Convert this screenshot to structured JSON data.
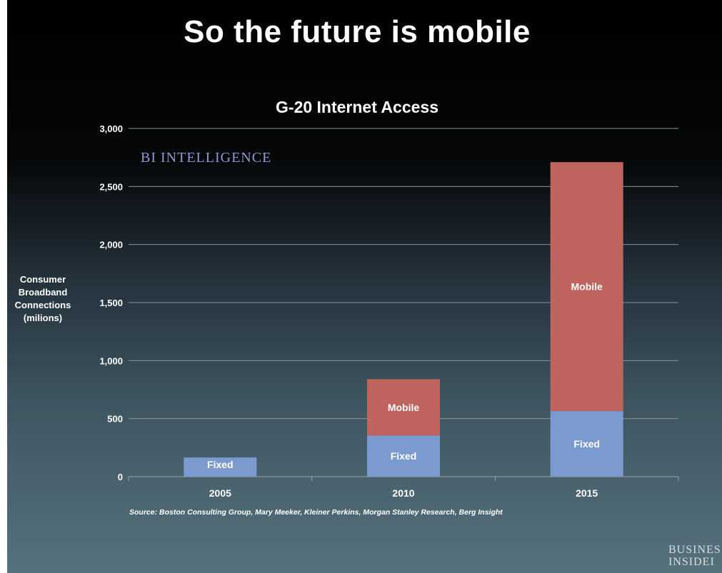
{
  "slide_title": "So the future is mobile",
  "watermark": "BI INTELLIGENCE",
  "source": "Source: Boston Consulting Group, Mary Meeker, Kleiner Perkins, Morgan Stanley Research, Berg Insight",
  "publisher_logo": "BUSINES\nINSIDEI",
  "colors": {
    "fixed": "#7b9ad0",
    "mobile": "#c0645f",
    "grid": "#8a949a",
    "text": "#ffffff"
  },
  "chart_data": {
    "type": "bar",
    "stacked": true,
    "title": "G-20 Internet Access",
    "xlabel": "",
    "ylabel": "Consumer\nBroadband\nConnections\n(milions)",
    "categories": [
      "2005",
      "2010",
      "2015"
    ],
    "series": [
      {
        "name": "Fixed",
        "values": [
          165,
          355,
          565
        ],
        "color": "#7b9ad0",
        "labels": [
          "Fixed",
          "Fixed",
          "Fixed"
        ]
      },
      {
        "name": "Mobile",
        "values": [
          0,
          485,
          2145
        ],
        "color": "#c0645f",
        "labels": [
          "",
          "Mobile",
          "Mobile"
        ]
      }
    ],
    "ylim": [
      0,
      3000
    ],
    "yticks": [
      0,
      500,
      1000,
      1500,
      2000,
      2500,
      3000
    ],
    "ytick_labels": [
      "0",
      "500",
      "1,000",
      "1,500",
      "2,000",
      "2,500",
      "3,000"
    ],
    "grid": true,
    "legend": "none"
  }
}
